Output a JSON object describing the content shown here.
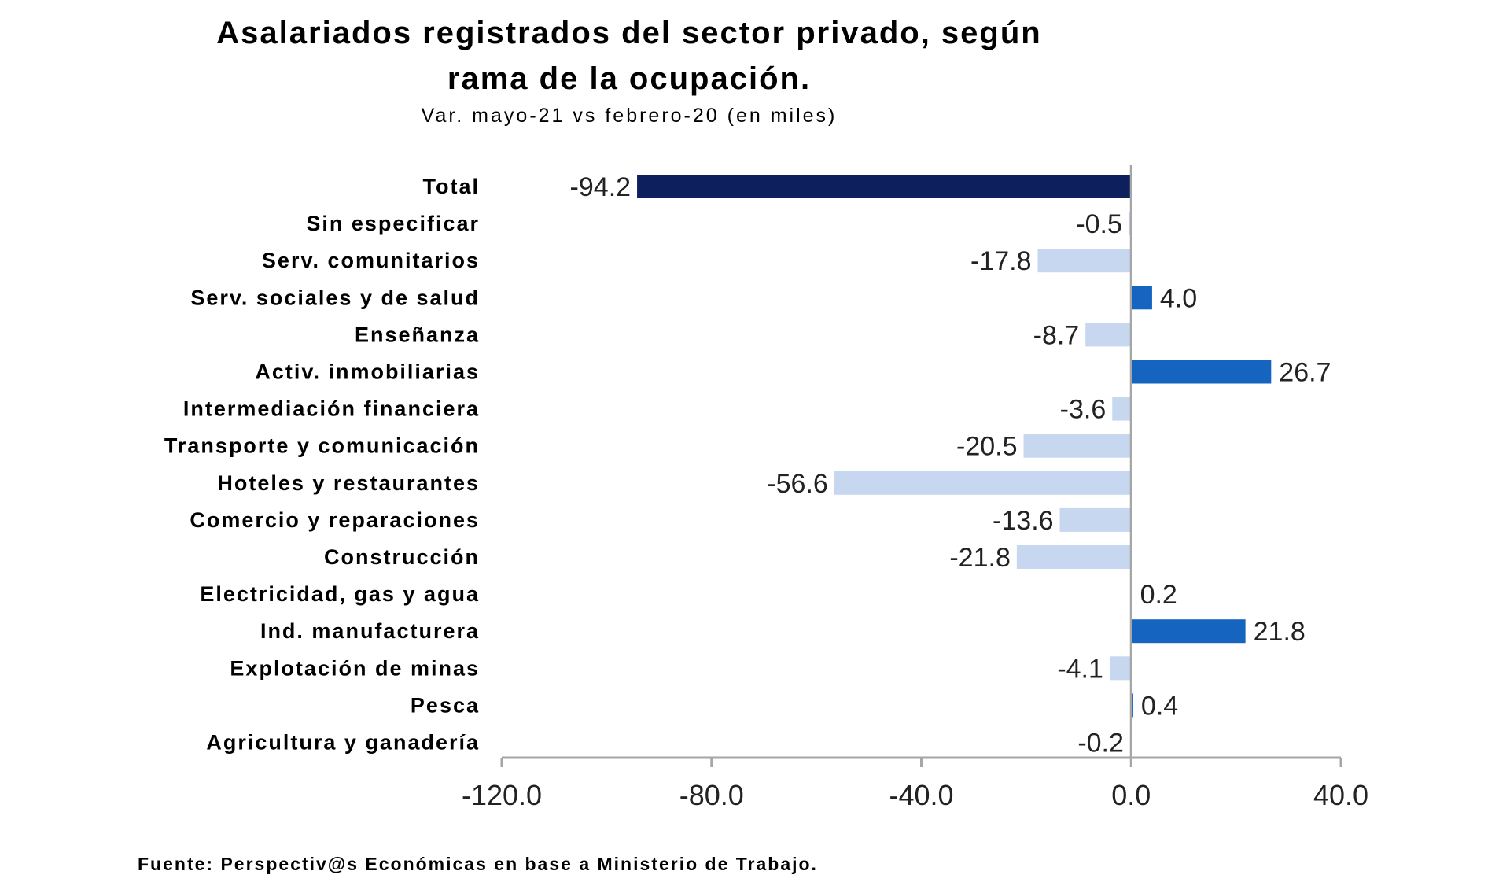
{
  "chart_data": {
    "type": "bar",
    "orientation": "horizontal",
    "title_line1": "Asalariados registrados del sector privado, según",
    "title_line2": "rama de la ocupación.",
    "subtitle": "Var. mayo-21 vs febrero-20 (en miles)",
    "source": "Fuente: Perspectiv@s Económicas en base a Ministerio de Trabajo.",
    "xlim": [
      -120,
      40
    ],
    "xticks": [
      -120,
      -80,
      -40,
      0,
      40
    ],
    "xtick_labels": [
      "-120.0",
      "-80.0",
      "-40.0",
      "0.0",
      "40.0"
    ],
    "grid": false,
    "legend": "none",
    "categories": [
      "Total",
      "Sin especificar",
      "Serv. comunitarios",
      "Serv. sociales y de salud",
      "Enseñanza",
      "Activ. inmobiliarias",
      "Intermediación financiera",
      "Transporte y comunicación",
      "Hoteles y restaurantes",
      "Comercio y reparaciones",
      "Construcción",
      "Electricidad, gas y agua",
      "Ind. manufacturera",
      "Explotación de minas",
      "Pesca",
      "Agricultura y ganadería"
    ],
    "values": [
      -94.2,
      -0.5,
      -17.8,
      4.0,
      -8.7,
      26.7,
      -3.6,
      -20.5,
      -56.6,
      -13.6,
      -21.8,
      0.2,
      21.8,
      -4.1,
      0.4,
      -0.2
    ],
    "value_labels": [
      "-94.2",
      "-0.5",
      "-17.8",
      "4.0",
      "-8.7",
      "26.7",
      "-3.6",
      "-20.5",
      "-56.6",
      "-13.6",
      "-21.8",
      "0.2",
      "21.8",
      "-4.1",
      "0.4",
      "-0.2"
    ],
    "colors": {
      "total": "#0d1f5c",
      "positive": "#1565c0",
      "negative": "#c6d7ef",
      "axis": "#a6a6a6"
    }
  }
}
